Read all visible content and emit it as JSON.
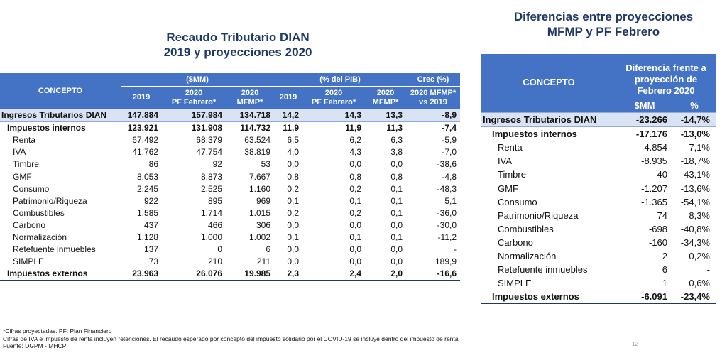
{
  "left": {
    "title_line1": "Recaudo Tributario DIAN",
    "title_line2": "2019 y proyecciones 2020",
    "header": {
      "concepto": "CONCEPTO",
      "group_mm": "($MM)",
      "group_pib": "(% del PIB)",
      "group_crec": "Crec (%)",
      "col_2019": "2019",
      "col_2020_pf_line1": "2020",
      "col_2020_pf_line2": "PF Febrero*",
      "col_2020_mfmp_line1": "2020",
      "col_2020_mfmp_line2": "MFMP*",
      "pib_2019": "2019",
      "pib_2020_pf_line1": "2020",
      "pib_2020_pf_line2": "PF Febrero*",
      "pib_2020_mfmp_line1": "2020",
      "pib_2020_mfmp_line2": "MFMP*",
      "crec_line1": "2020 MFMP*",
      "crec_line2": "vs 2019"
    },
    "rows": [
      {
        "concepto": "Ingresos Tributarios DIAN",
        "v2019": "147.884",
        "v2020pf": "157.984",
        "v2020mfmp": "134.718",
        "p2019": "14,2",
        "p2020pf": "14,3",
        "p2020mfmp": "13,3",
        "crec": "-8,9"
      },
      {
        "concepto": "Impuestos internos",
        "v2019": "123.921",
        "v2020pf": "131.908",
        "v2020mfmp": "114.732",
        "p2019": "11,9",
        "p2020pf": "11,9",
        "p2020mfmp": "11,3",
        "crec": "-7,4"
      },
      {
        "concepto": "Renta",
        "v2019": "67.492",
        "v2020pf": "68.379",
        "v2020mfmp": "63.524",
        "p2019": "6,5",
        "p2020pf": "6,2",
        "p2020mfmp": "6,3",
        "crec": "-5,9"
      },
      {
        "concepto": "IVA",
        "v2019": "41.762",
        "v2020pf": "47.754",
        "v2020mfmp": "38.819",
        "p2019": "4,0",
        "p2020pf": "4,3",
        "p2020mfmp": "3,8",
        "crec": "-7,0"
      },
      {
        "concepto": "Timbre",
        "v2019": "86",
        "v2020pf": "92",
        "v2020mfmp": "53",
        "p2019": "0,0",
        "p2020pf": "0,0",
        "p2020mfmp": "0,0",
        "crec": "-38,6"
      },
      {
        "concepto": "GMF",
        "v2019": "8.053",
        "v2020pf": "8.873",
        "v2020mfmp": "7.667",
        "p2019": "0,8",
        "p2020pf": "0,8",
        "p2020mfmp": "0,8",
        "crec": "-4,8"
      },
      {
        "concepto": "Consumo",
        "v2019": "2.245",
        "v2020pf": "2.525",
        "v2020mfmp": "1.160",
        "p2019": "0,2",
        "p2020pf": "0,2",
        "p2020mfmp": "0,1",
        "crec": "-48,3"
      },
      {
        "concepto": "Patrimonio/Riqueza",
        "v2019": "922",
        "v2020pf": "895",
        "v2020mfmp": "969",
        "p2019": "0,1",
        "p2020pf": "0,1",
        "p2020mfmp": "0,1",
        "crec": "5,1"
      },
      {
        "concepto": "Combustibles",
        "v2019": "1.585",
        "v2020pf": "1.714",
        "v2020mfmp": "1.015",
        "p2019": "0,2",
        "p2020pf": "0,2",
        "p2020mfmp": "0,1",
        "crec": "-36,0"
      },
      {
        "concepto": "Carbono",
        "v2019": "437",
        "v2020pf": "466",
        "v2020mfmp": "306",
        "p2019": "0,0",
        "p2020pf": "0,0",
        "p2020mfmp": "0,0",
        "crec": "-30,0"
      },
      {
        "concepto": "Normalización",
        "v2019": "1.128",
        "v2020pf": "1.000",
        "v2020mfmp": "1.002",
        "p2019": "0,1",
        "p2020pf": "0,1",
        "p2020mfmp": "0,1",
        "crec": "-11,2"
      },
      {
        "concepto": "Retefuente inmuebles",
        "v2019": "137",
        "v2020pf": "0",
        "v2020mfmp": "6",
        "p2019": "0,0",
        "p2020pf": "0,0",
        "p2020mfmp": "0,0",
        "crec": "-"
      },
      {
        "concepto": "SIMPLE",
        "v2019": "73",
        "v2020pf": "210",
        "v2020mfmp": "211",
        "p2019": "0,0",
        "p2020pf": "0,0",
        "p2020mfmp": "0,0",
        "crec": "189,9"
      },
      {
        "concepto": "Impuestos externos",
        "v2019": "23.963",
        "v2020pf": "26.076",
        "v2020mfmp": "19.985",
        "p2019": "2,3",
        "p2020pf": "2,4",
        "p2020mfmp": "2,0",
        "crec": "-16,6"
      }
    ]
  },
  "right": {
    "title_line1": "Diferencias entre proyecciones",
    "title_line2": "MFMP y PF Febrero",
    "header": {
      "concepto": "CONCEPTO",
      "diff_line1": "Diferencia frente a",
      "diff_line2": "proyección de",
      "diff_line3": "Febrero 2020",
      "col_mm": "$MM",
      "col_pct": "%"
    },
    "rows": [
      {
        "concepto": "Ingresos Tributarios DIAN",
        "mm": "-23.266",
        "pct": "-14,7%"
      },
      {
        "concepto": "Impuestos internos",
        "mm": "-17.176",
        "pct": "-13,0%"
      },
      {
        "concepto": "Renta",
        "mm": "-4.854",
        "pct": "-7,1%"
      },
      {
        "concepto": "IVA",
        "mm": "-8.935",
        "pct": "-18,7%"
      },
      {
        "concepto": "Timbre",
        "mm": "-40",
        "pct": "-43,1%"
      },
      {
        "concepto": "GMF",
        "mm": "-1.207",
        "pct": "-13,6%"
      },
      {
        "concepto": "Consumo",
        "mm": "-1.365",
        "pct": "-54,1%"
      },
      {
        "concepto": "Patrimonio/Riqueza",
        "mm": "74",
        "pct": "8,3%"
      },
      {
        "concepto": "Combustibles",
        "mm": "-698",
        "pct": "-40,8%"
      },
      {
        "concepto": "Carbono",
        "mm": "-160",
        "pct": "-34,3%"
      },
      {
        "concepto": "Normalización",
        "mm": "2",
        "pct": "0,2%"
      },
      {
        "concepto": "Retefuente inmuebles",
        "mm": "6",
        "pct": "-"
      },
      {
        "concepto": "SIMPLE",
        "mm": "1",
        "pct": "0,6%"
      },
      {
        "concepto": "Impuestos externos",
        "mm": "-6.091",
        "pct": "-23,4%"
      }
    ]
  },
  "footnotes": {
    "line1": "*Cifras proyectadas. PF: Plan Financiero",
    "line2": "Cifras de IVA e impuesto de renta incluyen retenciones. El recaudo esperado por concepto del impuesto solidario por el COVID-19 se incluye dentro del impuesto de renta",
    "line3": "Fuente: DGPM - MHCP"
  },
  "page_number": "12"
}
